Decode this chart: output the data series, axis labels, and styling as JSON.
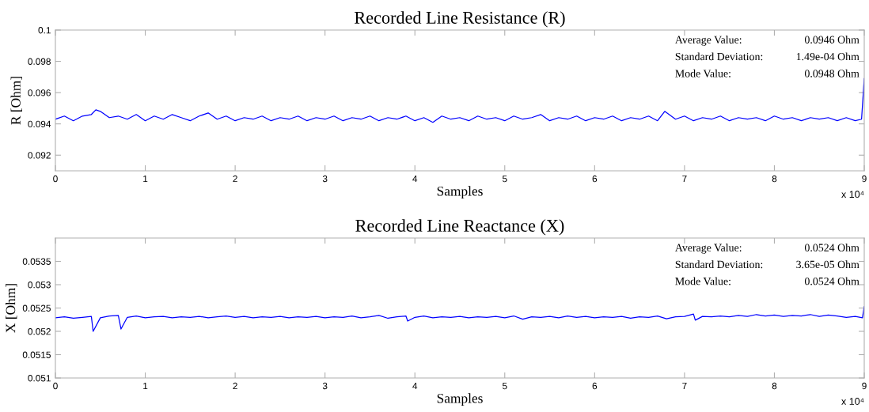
{
  "chart_data": [
    {
      "type": "line",
      "title": "Recorded Line Resistance (R)",
      "xlabel": "Samples",
      "ylabel": "R [Ohm]",
      "xlim": [
        0,
        9
      ],
      "xticks": [
        0,
        1,
        2,
        3,
        4,
        5,
        6,
        7,
        8,
        9
      ],
      "ylim": [
        0.091,
        0.1
      ],
      "yticks": [
        0.092,
        0.094,
        0.096,
        0.098,
        0.1
      ],
      "annotations": [
        "Average Value:",
        "0.0946 Ohm",
        "Standard Deviation:",
        "1.49e-04 Ohm",
        "Mode Value:",
        "0.0948 Ohm",
        "x 10⁴"
      ],
      "series": [
        {
          "color": "#0000ff",
          "x": [
            0,
            0.1,
            0.2,
            0.3,
            0.4,
            0.45,
            0.5,
            0.6,
            0.7,
            0.8,
            0.9,
            1.0,
            1.1,
            1.2,
            1.3,
            1.4,
            1.5,
            1.6,
            1.7,
            1.8,
            1.9,
            2.0,
            2.1,
            2.2,
            2.3,
            2.4,
            2.5,
            2.6,
            2.7,
            2.8,
            2.9,
            3.0,
            3.1,
            3.2,
            3.3,
            3.4,
            3.5,
            3.6,
            3.7,
            3.8,
            3.9,
            4.0,
            4.1,
            4.2,
            4.3,
            4.4,
            4.5,
            4.6,
            4.7,
            4.8,
            4.9,
            5.0,
            5.1,
            5.2,
            5.3,
            5.4,
            5.5,
            5.6,
            5.7,
            5.8,
            5.9,
            6.0,
            6.1,
            6.2,
            6.3,
            6.4,
            6.5,
            6.6,
            6.7,
            6.78,
            6.9,
            7.0,
            7.1,
            7.2,
            7.3,
            7.4,
            7.5,
            7.6,
            7.7,
            7.8,
            7.9,
            8.0,
            8.1,
            8.2,
            8.3,
            8.4,
            8.5,
            8.6,
            8.7,
            8.8,
            8.9,
            8.97,
            9.0
          ],
          "values": [
            0.0943,
            0.0945,
            0.0942,
            0.0945,
            0.0946,
            0.0949,
            0.0948,
            0.0944,
            0.0945,
            0.0943,
            0.0946,
            0.0942,
            0.0945,
            0.0943,
            0.0946,
            0.0944,
            0.0942,
            0.0945,
            0.0947,
            0.0943,
            0.0945,
            0.0942,
            0.0944,
            0.0943,
            0.0945,
            0.0942,
            0.0944,
            0.0943,
            0.0945,
            0.0942,
            0.0944,
            0.0943,
            0.0945,
            0.0942,
            0.0944,
            0.0943,
            0.0945,
            0.0942,
            0.0944,
            0.0943,
            0.0945,
            0.0942,
            0.0944,
            0.0941,
            0.0945,
            0.0943,
            0.0944,
            0.0942,
            0.0945,
            0.0943,
            0.0944,
            0.0942,
            0.0945,
            0.0943,
            0.0944,
            0.0946,
            0.0942,
            0.0944,
            0.0943,
            0.0945,
            0.0942,
            0.0944,
            0.0943,
            0.0945,
            0.0942,
            0.0944,
            0.0943,
            0.0945,
            0.0942,
            0.0948,
            0.0943,
            0.0945,
            0.0942,
            0.0944,
            0.0943,
            0.0945,
            0.0942,
            0.0944,
            0.0943,
            0.0944,
            0.0942,
            0.0945,
            0.0943,
            0.0944,
            0.0942,
            0.0944,
            0.0943,
            0.0944,
            0.0942,
            0.0944,
            0.0942,
            0.0943,
            0.0969
          ]
        }
      ]
    },
    {
      "type": "line",
      "title": "Recorded Line Reactance (X)",
      "xlabel": "Samples",
      "ylabel": "X [Ohm]",
      "xlim": [
        0,
        9
      ],
      "xticks": [
        0,
        1,
        2,
        3,
        4,
        5,
        6,
        7,
        8,
        9
      ],
      "ylim": [
        0.051,
        0.054
      ],
      "yticks": [
        0.051,
        0.0515,
        0.052,
        0.0525,
        0.053,
        0.0535
      ],
      "annotations": [
        "Average Value:",
        "0.0524 Ohm",
        "Standard Deviation:",
        "3.65e-05 Ohm",
        "Mode Value:",
        "0.0524 Ohm",
        "x 10⁴"
      ],
      "series": [
        {
          "color": "#0000ff",
          "x": [
            0,
            0.1,
            0.2,
            0.3,
            0.4,
            0.42,
            0.5,
            0.6,
            0.7,
            0.73,
            0.8,
            0.9,
            1.0,
            1.1,
            1.2,
            1.3,
            1.4,
            1.5,
            1.6,
            1.7,
            1.8,
            1.9,
            2.0,
            2.1,
            2.2,
            2.3,
            2.4,
            2.5,
            2.6,
            2.7,
            2.8,
            2.9,
            3.0,
            3.1,
            3.2,
            3.3,
            3.4,
            3.5,
            3.6,
            3.7,
            3.8,
            3.9,
            3.92,
            4.0,
            4.1,
            4.2,
            4.3,
            4.4,
            4.5,
            4.6,
            4.7,
            4.8,
            4.9,
            5.0,
            5.1,
            5.2,
            5.3,
            5.4,
            5.5,
            5.6,
            5.7,
            5.8,
            5.9,
            6.0,
            6.1,
            6.2,
            6.3,
            6.4,
            6.5,
            6.6,
            6.7,
            6.8,
            6.9,
            7.0,
            7.1,
            7.12,
            7.2,
            7.3,
            7.4,
            7.5,
            7.6,
            7.7,
            7.8,
            7.9,
            8.0,
            8.1,
            8.2,
            8.3,
            8.4,
            8.5,
            8.6,
            8.7,
            8.8,
            8.9,
            8.98,
            9.0
          ],
          "values": [
            0.05229,
            0.05231,
            0.05228,
            0.0523,
            0.05232,
            0.052,
            0.05229,
            0.05233,
            0.05234,
            0.05205,
            0.0523,
            0.05233,
            0.05229,
            0.05231,
            0.05232,
            0.05229,
            0.05231,
            0.0523,
            0.05232,
            0.05229,
            0.05231,
            0.05233,
            0.0523,
            0.05232,
            0.05229,
            0.05231,
            0.0523,
            0.05232,
            0.05229,
            0.05231,
            0.0523,
            0.05232,
            0.05229,
            0.05231,
            0.0523,
            0.05233,
            0.05229,
            0.05231,
            0.05234,
            0.05228,
            0.05231,
            0.05233,
            0.05222,
            0.0523,
            0.05233,
            0.05229,
            0.05231,
            0.0523,
            0.05232,
            0.05229,
            0.05231,
            0.0523,
            0.05232,
            0.05229,
            0.05233,
            0.05226,
            0.05231,
            0.0523,
            0.05232,
            0.05229,
            0.05233,
            0.0523,
            0.05232,
            0.05229,
            0.05231,
            0.0523,
            0.05232,
            0.05228,
            0.05231,
            0.0523,
            0.05233,
            0.05227,
            0.05231,
            0.05232,
            0.05237,
            0.05224,
            0.05232,
            0.05231,
            0.05233,
            0.05231,
            0.05234,
            0.05232,
            0.05236,
            0.05233,
            0.05235,
            0.05232,
            0.05234,
            0.05233,
            0.05236,
            0.05232,
            0.05235,
            0.05233,
            0.0523,
            0.05232,
            0.05229,
            0.05253
          ]
        }
      ]
    }
  ]
}
